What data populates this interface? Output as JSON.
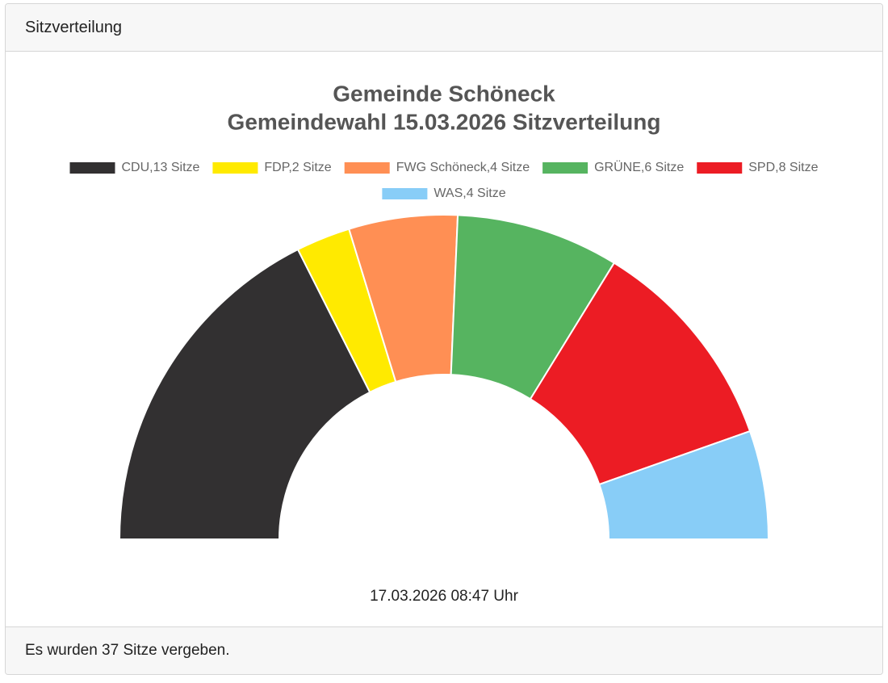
{
  "header": {
    "title": "Sitzverteilung"
  },
  "chart_data": {
    "type": "half-doughnut",
    "title": [
      "Gemeinde Schöneck",
      "Gemeindewahl 15.03.2026 Sitzverteilung"
    ],
    "categories": [
      "CDU,13 Sitze",
      "FDP,2 Sitze",
      "FWG Schöneck,4 Sitze",
      "GRÜNE,6 Sitze",
      "SPD,8 Sitze",
      "WAS,4 Sitze"
    ],
    "values": [
      13,
      2,
      4,
      6,
      8,
      4
    ],
    "colors": [
      "#323031",
      "#ffea00",
      "#ff8f54",
      "#56b460",
      "#ec1c24",
      "#88cdf7"
    ],
    "timestamp": "17.03.2026 08:47 Uhr"
  },
  "footer": {
    "text": "Es wurden 37 Sitze vergeben."
  }
}
